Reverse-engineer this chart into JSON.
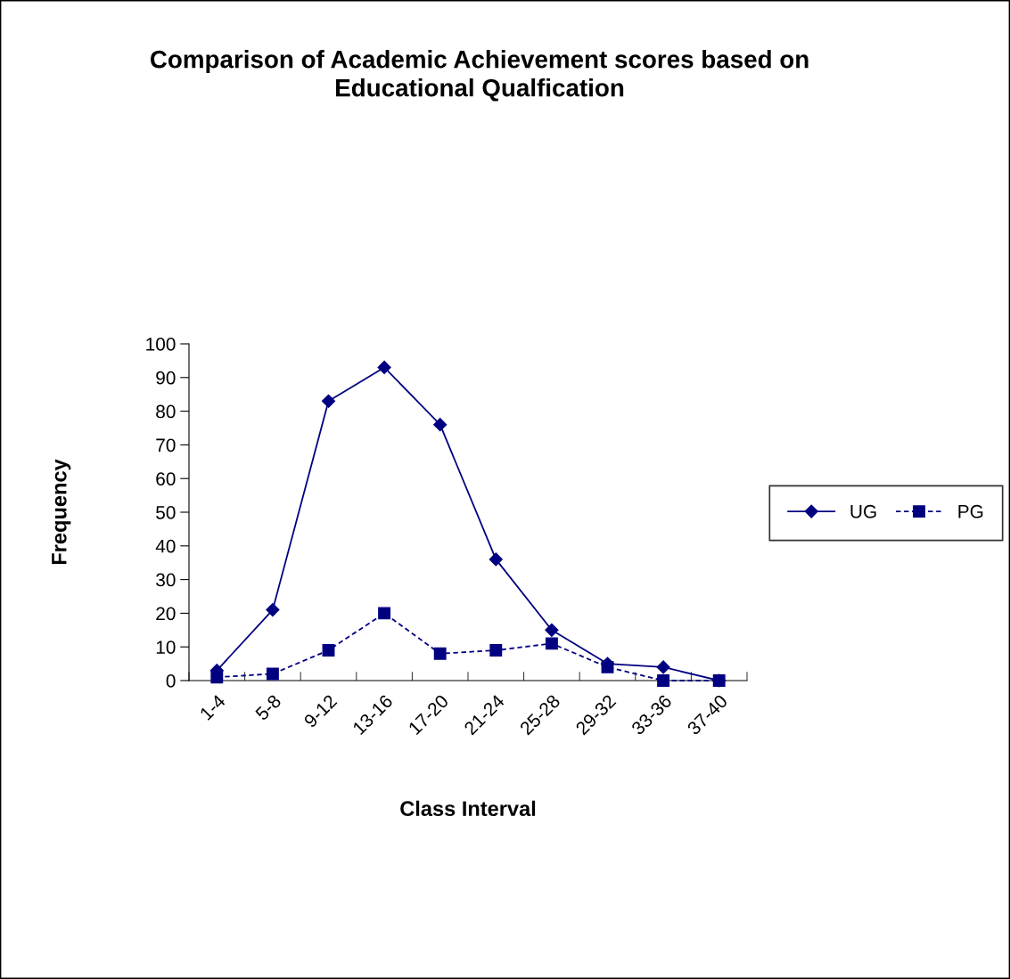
{
  "chart_data": {
    "type": "line",
    "title": "Comparison of Academic Achievement scores based on\nEducational Qualfication",
    "xlabel": "Class Interval",
    "ylabel": "Frequency",
    "categories": [
      "1-4",
      "5-8",
      "9-12",
      "13-16",
      "17-20",
      "21-24",
      "25-28",
      "29-32",
      "33-36",
      "37-40"
    ],
    "series": [
      {
        "name": "UG",
        "color": "#000080",
        "marker": "diamond",
        "line_style": "solid",
        "values": [
          3,
          21,
          83,
          93,
          76,
          36,
          15,
          5,
          4,
          0
        ]
      },
      {
        "name": "PG",
        "color": "#000080",
        "marker": "square",
        "line_style": "dashed",
        "values": [
          1,
          2,
          9,
          20,
          8,
          9,
          11,
          4,
          0,
          0
        ]
      }
    ],
    "ylim": [
      0,
      100
    ],
    "yticks": [
      0,
      10,
      20,
      30,
      40,
      50,
      60,
      70,
      80,
      90,
      100
    ],
    "grid": false,
    "legend": "right"
  }
}
